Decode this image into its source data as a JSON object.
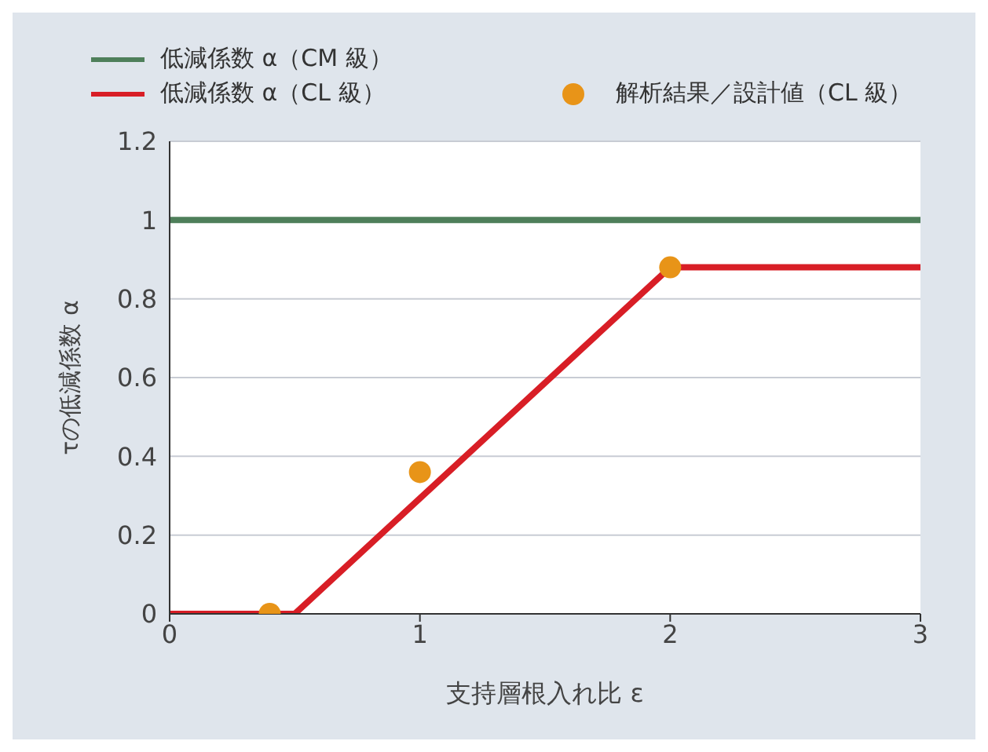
{
  "chart_data": {
    "type": "line",
    "xlabel": "支持層根入れ比 ε",
    "ylabel": "τの低減係数 α",
    "series": [
      {
        "name": "低減係数 α（CM 級）",
        "color": "#4e7f5a",
        "x": [
          0,
          3
        ],
        "values": [
          1,
          1
        ]
      },
      {
        "name": "低減係数 α（CL 級）",
        "color": "#d81e26",
        "x": [
          0,
          0.5,
          2,
          3
        ],
        "values": [
          0,
          0,
          0.88,
          0.88
        ]
      },
      {
        "name": "解析結果／設計値（CL 級）",
        "type": "scatter",
        "marker": "circle",
        "color": "#e89418",
        "x": [
          0.4,
          1,
          2
        ],
        "values": [
          0,
          0.36,
          0.88
        ]
      }
    ],
    "xlim": [
      0,
      3
    ],
    "xticks": [
      0,
      1,
      2,
      3
    ],
    "ylim": [
      0,
      1.2
    ],
    "yticks": [
      0,
      0.2,
      0.4,
      0.6,
      0.8,
      1,
      1.2
    ],
    "grid": "y",
    "legend": "top left",
    "marker": "none",
    "line_style": "solid"
  }
}
